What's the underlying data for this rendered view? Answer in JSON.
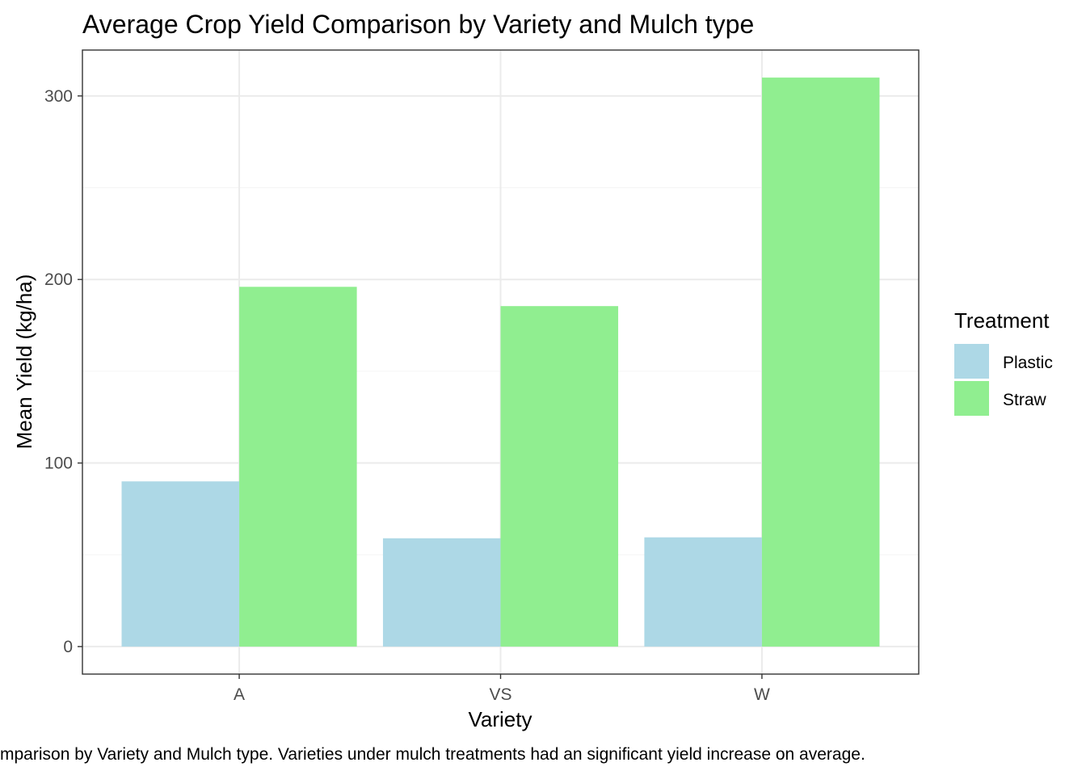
{
  "chart_data": {
    "type": "bar",
    "title": "Average Crop Yield Comparison by Variety and Mulch type",
    "xlabel": "Variety",
    "ylabel": "Mean Yield (kg/ha)",
    "categories": [
      "A",
      "VS",
      "W"
    ],
    "series": [
      {
        "name": "Plastic",
        "values": [
          90,
          59,
          59.5
        ],
        "color": "#add8e6"
      },
      {
        "name": "Straw",
        "values": [
          196,
          185.5,
          310
        ],
        "color": "#90ee90"
      }
    ],
    "ylim": [
      -15,
      325
    ],
    "yticks": [
      0,
      100,
      200,
      300
    ],
    "yticks_minor": [
      50,
      150,
      250
    ],
    "grid": true,
    "legend": {
      "title": "Treatment",
      "placement": "right"
    },
    "caption": "mparison by Variety and Mulch type. Varieties under mulch treatments had an significant yield increase on average."
  },
  "colors": {
    "panel_border": "#333333",
    "grid_major": "#ebebeb",
    "grid_minor": "#f5f5f5",
    "tick": "#333333"
  }
}
